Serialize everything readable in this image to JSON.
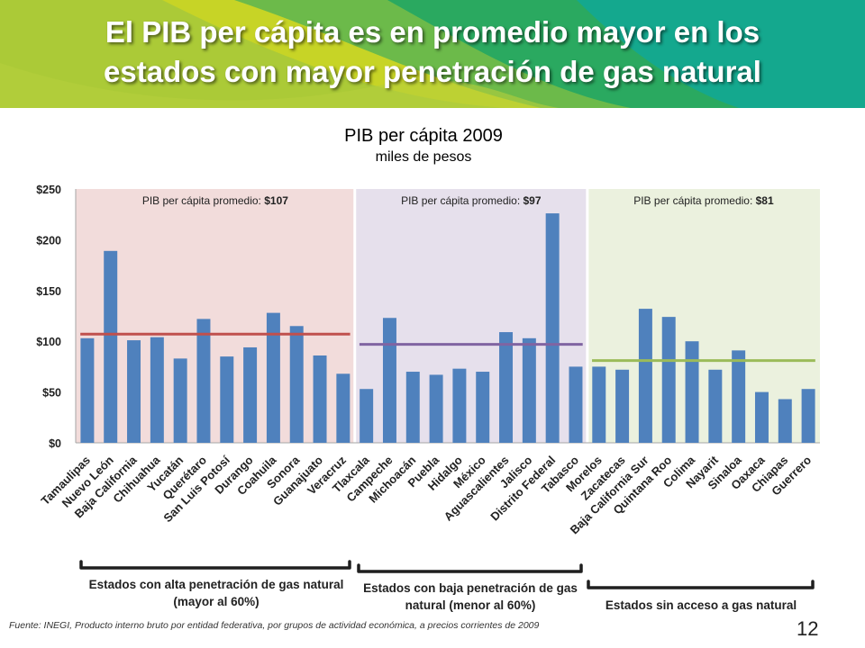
{
  "header": {
    "title_line1": "El PIB per cápita es en promedio mayor en los",
    "title_line2": "estados con mayor penetración de gas natural"
  },
  "colors": {
    "bar": "#4f81bd",
    "group_bg": [
      "#f2dcdb",
      "#e6e0ec",
      "#ebf1de"
    ],
    "avg_line": [
      "#c0504d",
      "#8064a2",
      "#9bbb59"
    ]
  },
  "chart_data": {
    "type": "bar",
    "title": "PIB per cápita 2009",
    "subtitle": "miles de pesos",
    "ylim": [
      0,
      250
    ],
    "yticks": [
      "$0",
      "$50",
      "$100",
      "$150",
      "$200",
      "$250"
    ],
    "ytick_values": [
      0,
      50,
      100,
      150,
      200,
      250
    ],
    "categories": [
      "Tamaulipas",
      "Nuevo León",
      "Baja California",
      "Chihuahua",
      "Yucatán",
      "Querétaro",
      "San Luis Potosí",
      "Durango",
      "Coahuila",
      "Sonora",
      "Guanajuato",
      "Veracruz",
      "Tlaxcala",
      "Campeche",
      "Michoacán",
      "Puebla",
      "Hidalgo",
      "México",
      "Aguascalientes",
      "Jalisco",
      "Distrito Federal",
      "Tabasco",
      "Morelos",
      "Zacatecas",
      "Baja California Sur",
      "Quintana Roo",
      "Colima",
      "Nayarit",
      "Sinaloa",
      "Oaxaca",
      "Chiapas",
      "Guerrero"
    ],
    "values": [
      103,
      189,
      101,
      104,
      83,
      122,
      85,
      94,
      128,
      115,
      86,
      68,
      53,
      123,
      70,
      67,
      73,
      70,
      109,
      103,
      226,
      75,
      75,
      72,
      132,
      124,
      100,
      72,
      91,
      50,
      43,
      53
    ],
    "groups": [
      {
        "label_prefix": "PIB per cápita promedio: ",
        "label_value": "$107",
        "average": 107,
        "start": 0,
        "end": 11,
        "bracket": "Estados con alta penetración de gas natural (mayor al 60%)"
      },
      {
        "label_prefix": "PIB per cápita promedio: ",
        "label_value": "$97",
        "average": 97,
        "start": 12,
        "end": 21,
        "bracket": "Estados con baja penetración de gas natural (menor al 60%)"
      },
      {
        "label_prefix": "PIB per cápita promedio: ",
        "label_value": "$81",
        "average": 81,
        "start": 22,
        "end": 31,
        "bracket": "Estados sin acceso a gas natural"
      }
    ]
  },
  "footer": {
    "source": "Fuente: INEGI, Producto interno bruto por entidad federativa, por grupos de actividad económica, a precios corrientes de 2009",
    "page_number": "12"
  }
}
